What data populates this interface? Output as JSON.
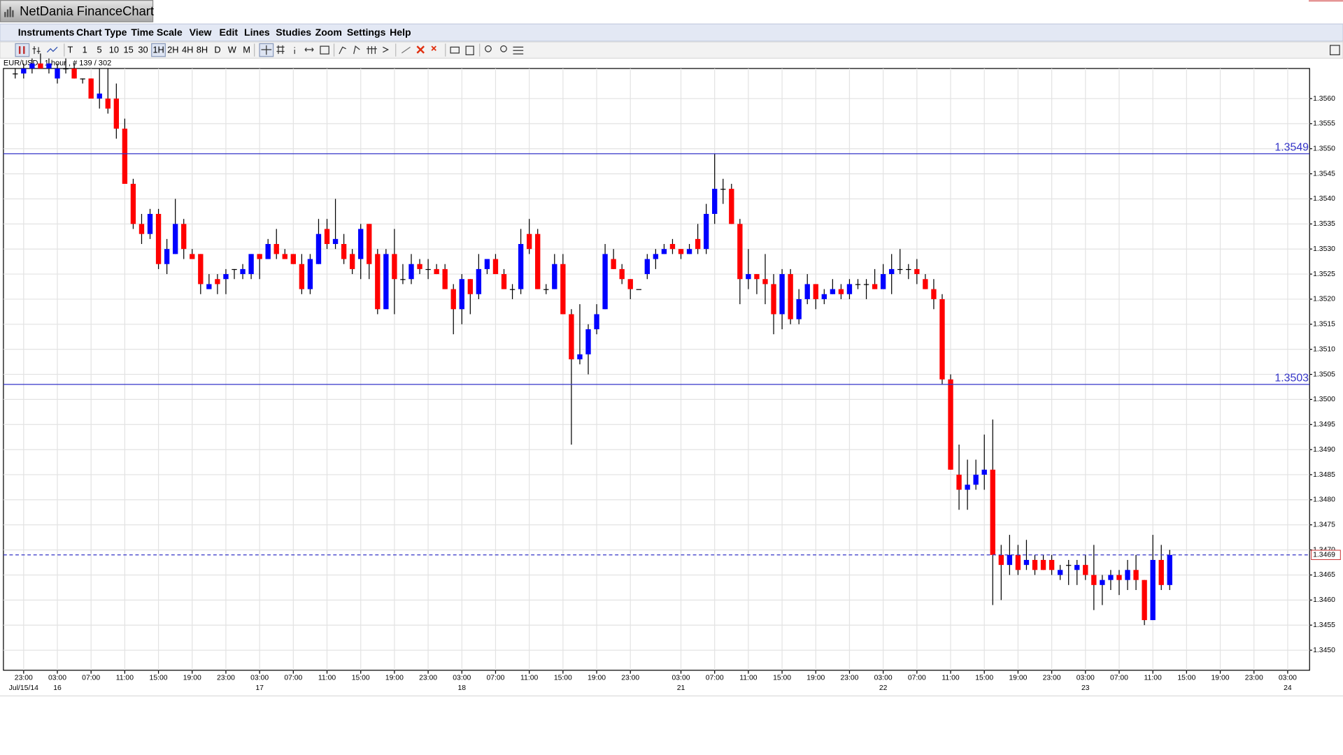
{
  "window": {
    "title": "NetDania FinanceChart"
  },
  "menu": [
    "Instruments",
    "Chart Type",
    "Time Scale",
    "View",
    "Edit",
    "Lines",
    "Studies",
    "Zoom",
    "Settings",
    "Help"
  ],
  "toolbar": {
    "timescales": [
      "T",
      "1",
      "5",
      "10",
      "15",
      "30",
      "1H",
      "2H",
      "4H",
      "8H",
      "D",
      "W",
      "M"
    ],
    "active": "1H"
  },
  "chart_data": {
    "type": "candlestick",
    "instrument_label": "EUR/USD , 1 hour , # 139 / 302",
    "up_color": "#0000ff",
    "down_color": "#ff0000",
    "wick_color": "#000000",
    "x": [
      -1,
      0,
      1,
      2,
      3,
      4,
      5,
      6,
      7,
      8,
      9,
      10,
      11,
      12,
      13,
      14,
      15,
      16,
      17,
      18,
      19,
      20,
      21,
      22,
      23,
      24,
      25,
      26,
      27,
      28,
      29,
      30,
      31,
      32,
      33,
      34,
      35,
      36,
      37,
      38,
      39,
      40,
      41,
      42,
      43,
      44,
      45,
      46,
      47,
      48,
      49,
      50,
      51,
      52,
      53,
      54,
      55,
      56,
      57,
      58,
      59,
      60,
      61,
      62,
      63,
      64,
      65,
      66,
      67,
      68,
      69,
      70,
      71,
      72,
      73,
      74,
      75,
      76,
      77,
      78,
      79,
      80,
      81,
      82,
      83,
      84,
      85,
      86,
      87,
      88,
      89,
      90,
      91,
      92,
      93,
      94,
      95,
      96,
      97,
      98,
      99,
      100,
      101,
      102,
      103,
      104,
      105,
      106,
      107,
      108,
      109,
      110,
      111,
      112,
      113,
      114,
      115,
      116,
      117,
      118,
      119,
      120,
      121,
      122,
      123,
      124,
      125,
      126,
      127,
      128,
      129,
      130,
      131,
      132,
      133,
      134,
      135,
      136
    ],
    "open": [
      1.3565,
      1.3565,
      1.3566,
      1.3567,
      1.3566,
      1.3564,
      1.3566,
      1.3566,
      1.3564,
      1.3564,
      1.356,
      1.356,
      1.356,
      1.3554,
      1.3543,
      1.3535,
      1.3533,
      1.3537,
      1.3527,
      1.3529,
      1.3535,
      1.3529,
      1.3529,
      1.3522,
      1.3524,
      1.3524,
      1.3526,
      1.3525,
      1.3525,
      1.3529,
      1.3528,
      1.3531,
      1.3529,
      1.3529,
      1.3527,
      1.3522,
      1.3527,
      1.3534,
      1.3531,
      1.3531,
      1.3529,
      1.3528,
      1.3535,
      1.3529,
      1.3518,
      1.3529,
      1.3524,
      1.3524,
      1.3527,
      1.3526,
      1.3526,
      1.3526,
      1.3522,
      1.3518,
      1.3524,
      1.3521,
      1.3526,
      1.3528,
      1.3525,
      1.3522,
      1.3522,
      1.3533,
      1.3533,
      1.3522,
      1.3522,
      1.3527,
      1.3517,
      1.3508,
      1.3509,
      1.3514,
      1.3518,
      1.3528,
      1.3526,
      1.3524,
      1.3522,
      1.3525,
      1.3528,
      1.3529,
      1.3531,
      1.353,
      1.3529,
      1.3532,
      1.353,
      1.3537,
      1.3542,
      1.3542,
      1.3535,
      1.3524,
      1.3525,
      1.3524,
      1.3523,
      1.3517,
      1.3525,
      1.3516,
      1.352,
      1.3523,
      1.352,
      1.3521,
      1.3522,
      1.3521,
      1.3523,
      1.3523,
      1.3523,
      1.3522,
      1.3525,
      1.3526,
      1.3526,
      1.3526,
      1.3524,
      1.3522,
      1.352,
      1.3504,
      1.3485,
      1.3482,
      1.3483,
      1.3485,
      1.3486,
      1.3469,
      1.3467,
      1.3469,
      1.3467,
      1.3468,
      1.3468,
      1.3468,
      1.3465,
      1.3467,
      1.3466,
      1.3467,
      1.3465,
      1.3463,
      1.3464,
      1.3465,
      1.3464,
      1.3466,
      1.3464,
      1.3456,
      1.3468,
      1.3463
    ],
    "high": [
      1.3566,
      1.3567,
      1.3568,
      1.3569,
      1.3568,
      1.3567,
      1.3568,
      1.3567,
      1.3564,
      1.3564,
      1.3566,
      1.3566,
      1.3563,
      1.3556,
      1.3544,
      1.3537,
      1.3538,
      1.3538,
      1.3532,
      1.354,
      1.3536,
      1.353,
      1.3529,
      1.3525,
      1.3525,
      1.3526,
      1.3526,
      1.3527,
      1.3529,
      1.3529,
      1.3532,
      1.3534,
      1.353,
      1.3529,
      1.3529,
      1.3529,
      1.3536,
      1.3536,
      1.354,
      1.3533,
      1.353,
      1.3535,
      1.3535,
      1.353,
      1.353,
      1.3534,
      1.3527,
      1.3529,
      1.3528,
      1.3528,
      1.3527,
      1.3527,
      1.3523,
      1.3525,
      1.3524,
      1.3529,
      1.3528,
      1.3529,
      1.3526,
      1.3523,
      1.3534,
      1.3536,
      1.3534,
      1.3523,
      1.3529,
      1.3529,
      1.3518,
      1.3519,
      1.3515,
      1.3519,
      1.3531,
      1.353,
      1.3527,
      1.3524,
      1.3522,
      1.3529,
      1.353,
      1.3531,
      1.3532,
      1.353,
      1.3531,
      1.3535,
      1.3539,
      1.3549,
      1.3544,
      1.3543,
      1.3536,
      1.353,
      1.3525,
      1.3529,
      1.3525,
      1.3526,
      1.3526,
      1.3522,
      1.3525,
      1.3523,
      1.3522,
      1.3524,
      1.3523,
      1.3524,
      1.3524,
      1.3524,
      1.3526,
      1.3527,
      1.3529,
      1.353,
      1.3527,
      1.3528,
      1.3525,
      1.3524,
      1.3521,
      1.3505,
      1.3491,
      1.3488,
      1.3488,
      1.3493,
      1.3496,
      1.3471,
      1.3473,
      1.3471,
      1.3472,
      1.3469,
      1.3469,
      1.3469,
      1.3467,
      1.3468,
      1.3468,
      1.3469,
      1.3471,
      1.3465,
      1.3466,
      1.3466,
      1.3468,
      1.3469,
      1.3464,
      1.3473,
      1.3471,
      1.347
    ],
    "low": [
      1.3564,
      1.3564,
      1.3565,
      1.3566,
      1.3565,
      1.3563,
      1.3565,
      1.3564,
      1.3563,
      1.356,
      1.3558,
      1.3557,
      1.3552,
      1.3543,
      1.3534,
      1.3531,
      1.3532,
      1.3526,
      1.3525,
      1.3529,
      1.3528,
      1.3528,
      1.3521,
      1.3522,
      1.3521,
      1.3521,
      1.3524,
      1.3524,
      1.3524,
      1.3524,
      1.3528,
      1.3528,
      1.3528,
      1.3527,
      1.3521,
      1.3521,
      1.3527,
      1.353,
      1.353,
      1.3527,
      1.3525,
      1.3524,
      1.3524,
      1.3517,
      1.3518,
      1.3517,
      1.3523,
      1.3523,
      1.3525,
      1.3524,
      1.3525,
      1.3522,
      1.3513,
      1.3515,
      1.3517,
      1.352,
      1.3525,
      1.3525,
      1.3522,
      1.352,
      1.3521,
      1.3529,
      1.3522,
      1.3521,
      1.3522,
      1.3517,
      1.3491,
      1.3507,
      1.3505,
      1.3513,
      1.3518,
      1.3526,
      1.3523,
      1.352,
      1.3522,
      1.3524,
      1.3526,
      1.3529,
      1.3529,
      1.3528,
      1.3529,
      1.3529,
      1.3529,
      1.3535,
      1.3539,
      1.3535,
      1.3519,
      1.3522,
      1.3521,
      1.3519,
      1.3513,
      1.3514,
      1.3515,
      1.3515,
      1.3519,
      1.3518,
      1.3519,
      1.3521,
      1.352,
      1.352,
      1.3522,
      1.352,
      1.3522,
      1.3522,
      1.3521,
      1.3525,
      1.3524,
      1.3523,
      1.3522,
      1.3518,
      1.3503,
      1.3486,
      1.3478,
      1.3478,
      1.3482,
      1.3482,
      1.3459,
      1.346,
      1.3465,
      1.3465,
      1.3466,
      1.3465,
      1.3466,
      1.3465,
      1.3464,
      1.3463,
      1.3463,
      1.3464,
      1.3458,
      1.3459,
      1.3462,
      1.3461,
      1.3462,
      1.3462,
      1.3455,
      1.3456,
      1.3462,
      1.3462
    ],
    "close": [
      1.3565,
      1.3566,
      1.3567,
      1.3566,
      1.3567,
      1.3566,
      1.3566,
      1.3564,
      1.3564,
      1.356,
      1.3561,
      1.3558,
      1.3554,
      1.3543,
      1.3535,
      1.3533,
      1.3537,
      1.3527,
      1.353,
      1.3535,
      1.353,
      1.3528,
      1.3523,
      1.3523,
      1.3523,
      1.3525,
      1.3526,
      1.3526,
      1.3529,
      1.3528,
      1.3531,
      1.3529,
      1.3528,
      1.3527,
      1.3522,
      1.3528,
      1.3533,
      1.3531,
      1.3532,
      1.3528,
      1.3526,
      1.3534,
      1.3527,
      1.3518,
      1.3529,
      1.3524,
      1.3524,
      1.3527,
      1.3526,
      1.3526,
      1.3525,
      1.3522,
      1.3518,
      1.3524,
      1.3521,
      1.3526,
      1.3528,
      1.3525,
      1.3522,
      1.3522,
      1.3531,
      1.353,
      1.3522,
      1.3522,
      1.3527,
      1.3517,
      1.3508,
      1.3509,
      1.3514,
      1.3517,
      1.3529,
      1.3526,
      1.3524,
      1.3522,
      1.3522,
      1.3528,
      1.3529,
      1.353,
      1.353,
      1.3529,
      1.353,
      1.353,
      1.3537,
      1.3542,
      1.3542,
      1.3535,
      1.3524,
      1.3525,
      1.3524,
      1.3523,
      1.3517,
      1.3525,
      1.3516,
      1.352,
      1.3523,
      1.352,
      1.3521,
      1.3522,
      1.3521,
      1.3523,
      1.3523,
      1.3523,
      1.3522,
      1.3525,
      1.3526,
      1.3526,
      1.3526,
      1.3525,
      1.3522,
      1.352,
      1.3504,
      1.3486,
      1.3482,
      1.3483,
      1.3485,
      1.3486,
      1.3469,
      1.3467,
      1.3469,
      1.3466,
      1.3468,
      1.3466,
      1.3466,
      1.3466,
      1.3466,
      1.3467,
      1.3467,
      1.3465,
      1.3463,
      1.3464,
      1.3465,
      1.3464,
      1.3466,
      1.3464,
      1.3456,
      1.3468,
      1.3463,
      1.3469
    ],
    "xlim": [
      -2.4,
      152.6
    ],
    "xticks": [
      {
        "value": 0,
        "label": "23:00"
      },
      {
        "value": 4,
        "label": "03:00"
      },
      {
        "value": 8,
        "label": "07:00"
      },
      {
        "value": 12,
        "label": "11:00"
      },
      {
        "value": 16,
        "label": "15:00"
      },
      {
        "value": 20,
        "label": "19:00"
      },
      {
        "value": 24,
        "label": "23:00"
      },
      {
        "value": 28,
        "label": "03:00"
      },
      {
        "value": 32,
        "label": "07:00"
      },
      {
        "value": 36,
        "label": "11:00"
      },
      {
        "value": 40,
        "label": "15:00"
      },
      {
        "value": 44,
        "label": "19:00"
      },
      {
        "value": 48,
        "label": "23:00"
      },
      {
        "value": 52,
        "label": "03:00"
      },
      {
        "value": 56,
        "label": "07:00"
      },
      {
        "value": 60,
        "label": "11:00"
      },
      {
        "value": 64,
        "label": "15:00"
      },
      {
        "value": 68,
        "label": "19:00"
      },
      {
        "value": 72,
        "label": "23:00"
      },
      {
        "value": 78,
        "label": "03:00"
      },
      {
        "value": 82,
        "label": "07:00"
      },
      {
        "value": 86,
        "label": "11:00"
      },
      {
        "value": 90,
        "label": "15:00"
      },
      {
        "value": 94,
        "label": "19:00"
      },
      {
        "value": 98,
        "label": "23:00"
      },
      {
        "value": 102,
        "label": "03:00"
      },
      {
        "value": 106,
        "label": "07:00"
      },
      {
        "value": 110,
        "label": "11:00"
      },
      {
        "value": 114,
        "label": "15:00"
      },
      {
        "value": 118,
        "label": "19:00"
      },
      {
        "value": 122,
        "label": "23:00"
      },
      {
        "value": 126,
        "label": "03:00"
      },
      {
        "value": 130,
        "label": "07:00"
      },
      {
        "value": 134,
        "label": "11:00"
      },
      {
        "value": 138,
        "label": "15:00"
      },
      {
        "value": 142,
        "label": "19:00"
      },
      {
        "value": 146,
        "label": "23:00"
      },
      {
        "value": 150,
        "label": "03:00"
      }
    ],
    "date_ticks": [
      {
        "value": 0,
        "label": "Jul/15/14"
      },
      {
        "value": 4,
        "label": "16"
      },
      {
        "value": 28,
        "label": "17"
      },
      {
        "value": 52,
        "label": "18"
      },
      {
        "value": 78,
        "label": "21"
      },
      {
        "value": 102,
        "label": "22"
      },
      {
        "value": 126,
        "label": "23"
      },
      {
        "value": 150,
        "label": "24"
      }
    ],
    "ylim": [
      1.3446,
      1.3566
    ],
    "yticks": [
      {
        "value": 1.345,
        "label": "1.3450"
      },
      {
        "value": 1.3455,
        "label": "1.3455"
      },
      {
        "value": 1.346,
        "label": "1.3460"
      },
      {
        "value": 1.3465,
        "label": "1.3465"
      },
      {
        "value": 1.347,
        "label": "1.3470"
      },
      {
        "value": 1.3475,
        "label": "1.3475"
      },
      {
        "value": 1.348,
        "label": "1.3480"
      },
      {
        "value": 1.3485,
        "label": "1.3485"
      },
      {
        "value": 1.349,
        "label": "1.3490"
      },
      {
        "value": 1.3495,
        "label": "1.3495"
      },
      {
        "value": 1.35,
        "label": "1.3500"
      },
      {
        "value": 1.3505,
        "label": "1.3505"
      },
      {
        "value": 1.351,
        "label": "1.3510"
      },
      {
        "value": 1.3515,
        "label": "1.3515"
      },
      {
        "value": 1.352,
        "label": "1.3520"
      },
      {
        "value": 1.3525,
        "label": "1.3525"
      },
      {
        "value": 1.353,
        "label": "1.3530"
      },
      {
        "value": 1.3535,
        "label": "1.3535"
      },
      {
        "value": 1.354,
        "label": "1.3540"
      },
      {
        "value": 1.3545,
        "label": "1.3545"
      },
      {
        "value": 1.355,
        "label": "1.3550"
      },
      {
        "value": 1.3555,
        "label": "1.3555"
      },
      {
        "value": 1.356,
        "label": "1.3560"
      }
    ],
    "grid": true,
    "hlines": [
      1.3549,
      1.3503
    ],
    "hline_color": "#3434c8",
    "last_price": 1.3469
  }
}
